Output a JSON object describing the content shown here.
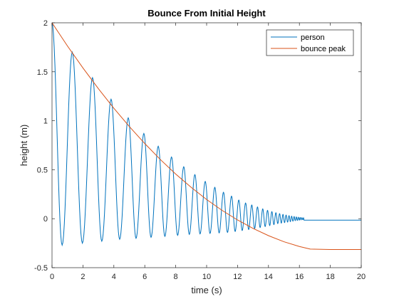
{
  "chart_data": {
    "type": "line",
    "title": "Bounce From Initial Height",
    "xlabel": "time (s)",
    "ylabel": "height (m)",
    "xlim": [
      0,
      20
    ],
    "ylim": [
      -0.5,
      2
    ],
    "xticks": [
      "0",
      "2",
      "4",
      "6",
      "8",
      "10",
      "12",
      "14",
      "16",
      "18",
      "20"
    ],
    "yticks": [
      "-0.5",
      "0",
      "0.5",
      "1",
      "1.5",
      "2"
    ],
    "grid": false,
    "legend_position": "top-right",
    "series": [
      {
        "name": "person",
        "color": "#0072BD",
        "bounce_times": [
          0,
          1.31,
          2.62,
          3.82,
          4.93,
          5.94,
          6.87,
          7.73,
          8.52,
          9.24,
          9.91,
          10.53,
          11.09,
          11.61,
          12.08,
          12.52,
          12.92,
          13.29,
          13.63,
          13.94,
          14.22,
          14.48,
          14.72,
          14.94,
          15.14,
          15.33,
          15.5,
          15.66,
          15.8,
          15.93,
          16.05,
          16.16,
          16.27
        ],
        "peak_heights": [
          2.0,
          1.7,
          1.44,
          1.22,
          1.03,
          0.87,
          0.74,
          0.63,
          0.53,
          0.45,
          0.38,
          0.32,
          0.27,
          0.23,
          0.19,
          0.16,
          0.14,
          0.12,
          0.1,
          0.085,
          0.072,
          0.061,
          0.052,
          0.044,
          0.037,
          0.031,
          0.026,
          0.022,
          0.018,
          0.015,
          0.013,
          0.011,
          0.009
        ],
        "trough_depths": [
          -0.27,
          -0.25,
          -0.23,
          -0.21,
          -0.2,
          -0.19,
          -0.18,
          -0.17,
          -0.16,
          -0.155,
          -0.15,
          -0.145,
          -0.14,
          -0.13,
          -0.12,
          -0.11,
          -0.1,
          -0.09,
          -0.08,
          -0.07,
          -0.06,
          -0.05,
          -0.045,
          -0.04,
          -0.035,
          -0.03,
          -0.025,
          -0.02,
          -0.018,
          -0.015,
          -0.012,
          -0.01
        ],
        "rest_level": -0.015,
        "rest_start": 16.3,
        "end_x": 20
      },
      {
        "name": "bounce peak",
        "color": "#D95319",
        "x": [
          0,
          1,
          2,
          3,
          4,
          5,
          6,
          7,
          8,
          9,
          10,
          11,
          12,
          13,
          14,
          15,
          16,
          16.7,
          18,
          20
        ],
        "y": [
          2.0,
          1.763,
          1.539,
          1.327,
          1.127,
          0.941,
          0.767,
          0.605,
          0.456,
          0.32,
          0.196,
          0.085,
          -0.013,
          -0.099,
          -0.173,
          -0.235,
          -0.284,
          -0.31,
          -0.315,
          -0.315
        ]
      }
    ]
  }
}
